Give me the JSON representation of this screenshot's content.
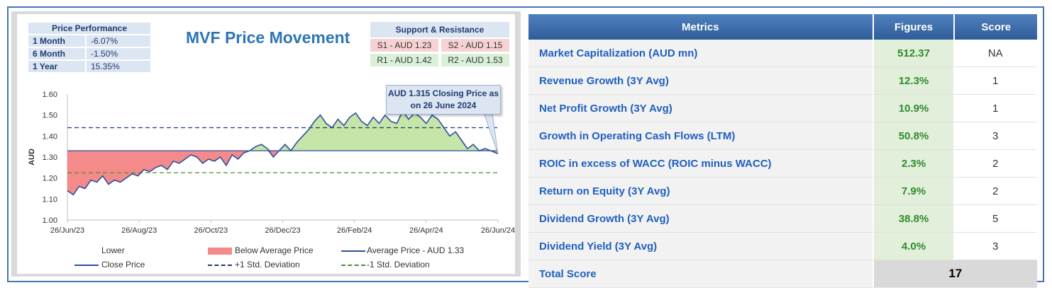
{
  "performance": {
    "header": "Price Performance",
    "rows": [
      {
        "label": "1 Month",
        "value": "-6.07%"
      },
      {
        "label": "6 Month",
        "value": "-1.50%"
      },
      {
        "label": "1 Year",
        "value": "15.35%"
      }
    ]
  },
  "support_resistance": {
    "header": "Support & Resistance",
    "s1": "S1 - AUD 1.23",
    "s2": "S2 - AUD 1.15",
    "r1": "R1 - AUD 1.42",
    "r2": "R2 - AUD 1.53"
  },
  "callout": {
    "line1": "AUD 1.315 Closing Price as",
    "line2": "on 26 June 2024"
  },
  "legend": {
    "lower": "Lower",
    "below": "Below Average Price",
    "average": "Average Price - AUD 1.33",
    "close": "Close Price",
    "plus_std": "+1 Std. Deviation",
    "minus_std": "-1 Std. Deviation"
  },
  "colors": {
    "close": "#2f4f9f",
    "below_fill": "#f48a8a",
    "above_fill": "#c6e5a8",
    "plus_std": "#1f3a70",
    "minus_std": "#4d8f2a",
    "title": "#2e75b6"
  },
  "chart_data": {
    "type": "line",
    "title": "MVF Price Movement",
    "xlabel": "",
    "ylabel": "AUD",
    "ylim": [
      1.0,
      1.6
    ],
    "yticks": [
      "1.00",
      "1.10",
      "1.20",
      "1.30",
      "1.40",
      "1.50",
      "1.60"
    ],
    "x_ticks": [
      "26/Jun/23",
      "26/Aug/23",
      "26/Oct/23",
      "26/Dec/23",
      "26/Feb/24",
      "26/Apr/24",
      "26/Jun/24"
    ],
    "average": 1.33,
    "plus_std": 1.44,
    "minus_std": 1.225,
    "close_price": {
      "x": [
        0,
        5,
        10,
        15,
        20,
        25,
        30,
        35,
        40,
        45,
        50,
        55,
        60,
        65,
        70,
        75,
        80,
        85,
        90,
        95,
        100,
        105,
        110,
        115,
        120,
        125,
        130,
        135,
        140,
        145,
        150,
        155,
        160,
        165,
        170,
        175,
        180,
        185,
        190,
        195,
        200,
        205,
        210,
        215,
        220,
        225,
        230,
        235,
        240,
        245,
        250,
        255,
        260,
        265,
        270,
        275,
        280,
        285,
        290,
        295,
        300,
        305,
        310,
        315,
        320,
        325,
        330,
        335,
        340,
        345,
        350,
        355,
        360,
        366
      ],
      "y": [
        1.14,
        1.12,
        1.16,
        1.15,
        1.19,
        1.18,
        1.21,
        1.17,
        1.19,
        1.18,
        1.2,
        1.22,
        1.21,
        1.24,
        1.23,
        1.25,
        1.26,
        1.24,
        1.28,
        1.27,
        1.29,
        1.31,
        1.3,
        1.27,
        1.29,
        1.28,
        1.3,
        1.26,
        1.31,
        1.29,
        1.32,
        1.33,
        1.35,
        1.36,
        1.34,
        1.3,
        1.33,
        1.36,
        1.33,
        1.37,
        1.4,
        1.43,
        1.47,
        1.5,
        1.46,
        1.44,
        1.48,
        1.45,
        1.49,
        1.51,
        1.47,
        1.45,
        1.49,
        1.46,
        1.5,
        1.47,
        1.46,
        1.52,
        1.48,
        1.51,
        1.49,
        1.46,
        1.5,
        1.48,
        1.44,
        1.4,
        1.42,
        1.38,
        1.34,
        1.36,
        1.33,
        1.34,
        1.33,
        1.315
      ]
    }
  },
  "metrics_table": {
    "headers": [
      "Metrics",
      "Figures",
      "Score"
    ],
    "rows": [
      {
        "metric": "Market Capitalization (AUD mn)",
        "figure": "512.37",
        "score": "NA"
      },
      {
        "metric": "Revenue Growth (3Y Avg)",
        "figure": "12.3%",
        "score": "1"
      },
      {
        "metric": "Net Profit Growth (3Y Avg)",
        "figure": "10.9%",
        "score": "1"
      },
      {
        "metric": "Growth in Operating Cash Flows (LTM)",
        "figure": "50.8%",
        "score": "3"
      },
      {
        "metric": "ROIC in excess of WACC (ROIC minus WACC)",
        "figure": "2.3%",
        "score": "2"
      },
      {
        "metric": "Return on Equity (3Y Avg)",
        "figure": "7.9%",
        "score": "2"
      },
      {
        "metric": "Dividend Growth (3Y Avg)",
        "figure": "38.8%",
        "score": "5"
      },
      {
        "metric": "Dividend Yield (3Y Avg)",
        "figure": "4.0%",
        "score": "3"
      }
    ],
    "total_label": "Total Score",
    "total_value": "17"
  }
}
